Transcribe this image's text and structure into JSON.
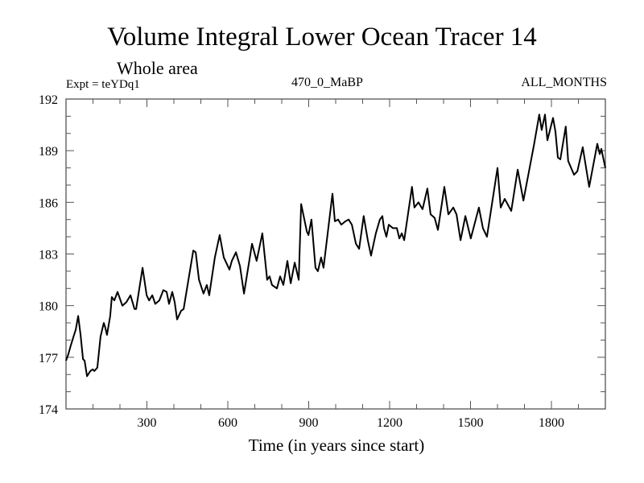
{
  "chart_data": {
    "type": "line",
    "title": "Volume Integral Lower Ocean Tracer 14",
    "subtitle": "Whole area",
    "annotations": {
      "left": "Expt = teYDq1",
      "center": "470_0_MaBP",
      "right": "ALL_MONTHS"
    },
    "xlabel": "Time (in years since start)",
    "ylabel": "",
    "xlim": [
      0,
      2000
    ],
    "ylim": [
      174,
      192
    ],
    "x_major_ticks": [
      300,
      600,
      900,
      1200,
      1500,
      1800
    ],
    "x_tick_labels": [
      "300",
      "600",
      "900",
      "1200",
      "1500",
      "1800"
    ],
    "x_minor_step": 100,
    "y_major_ticks": [
      174,
      177,
      180,
      183,
      186,
      189,
      192
    ],
    "y_tick_labels": [
      "174",
      "177",
      "180",
      "183",
      "186",
      "189",
      "192"
    ],
    "y_minor_step": 1,
    "grid": false,
    "legend": "none",
    "line_color": "#000000",
    "series": [
      {
        "name": "Lower Ocean Tracer 14",
        "points": [
          [
            0,
            176.8
          ],
          [
            9,
            177.2
          ],
          [
            18,
            177.7
          ],
          [
            30,
            178.3
          ],
          [
            36,
            178.6
          ],
          [
            45,
            179.4
          ],
          [
            54,
            178.3
          ],
          [
            63,
            176.9
          ],
          [
            69,
            176.8
          ],
          [
            78,
            175.9
          ],
          [
            90,
            176.2
          ],
          [
            99,
            176.3
          ],
          [
            105,
            176.2
          ],
          [
            116,
            176.4
          ],
          [
            128,
            178.2
          ],
          [
            140,
            179.0
          ],
          [
            146,
            178.7
          ],
          [
            152,
            178.3
          ],
          [
            164,
            179.4
          ],
          [
            170,
            180.5
          ],
          [
            179,
            180.3
          ],
          [
            191,
            180.8
          ],
          [
            209,
            180.0
          ],
          [
            224,
            180.2
          ],
          [
            239,
            180.6
          ],
          [
            254,
            179.8
          ],
          [
            260,
            179.8
          ],
          [
            284,
            182.2
          ],
          [
            299,
            180.6
          ],
          [
            308,
            180.3
          ],
          [
            320,
            180.6
          ],
          [
            331,
            180.1
          ],
          [
            346,
            180.3
          ],
          [
            361,
            180.9
          ],
          [
            373,
            180.8
          ],
          [
            382,
            180.1
          ],
          [
            394,
            180.8
          ],
          [
            403,
            180.2
          ],
          [
            412,
            179.2
          ],
          [
            427,
            179.7
          ],
          [
            436,
            179.8
          ],
          [
            472,
            183.2
          ],
          [
            481,
            183.1
          ],
          [
            493,
            181.5
          ],
          [
            510,
            180.7
          ],
          [
            522,
            181.2
          ],
          [
            531,
            180.6
          ],
          [
            552,
            182.8
          ],
          [
            570,
            184.1
          ],
          [
            585,
            182.8
          ],
          [
            606,
            182.1
          ],
          [
            615,
            182.6
          ],
          [
            630,
            183.1
          ],
          [
            645,
            182.3
          ],
          [
            660,
            180.7
          ],
          [
            690,
            183.6
          ],
          [
            707,
            182.6
          ],
          [
            728,
            184.2
          ],
          [
            746,
            181.5
          ],
          [
            755,
            181.7
          ],
          [
            764,
            181.2
          ],
          [
            782,
            181.0
          ],
          [
            794,
            181.7
          ],
          [
            806,
            181.2
          ],
          [
            821,
            182.6
          ],
          [
            833,
            181.3
          ],
          [
            848,
            182.5
          ],
          [
            863,
            181.5
          ],
          [
            872,
            185.9
          ],
          [
            893,
            184.3
          ],
          [
            899,
            184.1
          ],
          [
            910,
            185.0
          ],
          [
            925,
            182.2
          ],
          [
            934,
            182.0
          ],
          [
            946,
            182.8
          ],
          [
            955,
            182.2
          ],
          [
            988,
            186.5
          ],
          [
            997,
            184.9
          ],
          [
            1009,
            185.0
          ],
          [
            1021,
            184.7
          ],
          [
            1036,
            184.9
          ],
          [
            1048,
            185.0
          ],
          [
            1060,
            184.7
          ],
          [
            1075,
            183.6
          ],
          [
            1087,
            183.3
          ],
          [
            1104,
            185.2
          ],
          [
            1119,
            183.8
          ],
          [
            1131,
            182.9
          ],
          [
            1149,
            184.2
          ],
          [
            1164,
            185.0
          ],
          [
            1173,
            185.2
          ],
          [
            1179,
            184.5
          ],
          [
            1188,
            184.0
          ],
          [
            1197,
            184.7
          ],
          [
            1212,
            184.5
          ],
          [
            1227,
            184.5
          ],
          [
            1236,
            183.9
          ],
          [
            1245,
            184.2
          ],
          [
            1254,
            183.8
          ],
          [
            1283,
            186.9
          ],
          [
            1292,
            185.7
          ],
          [
            1307,
            186.0
          ],
          [
            1322,
            185.6
          ],
          [
            1340,
            186.8
          ],
          [
            1352,
            185.3
          ],
          [
            1367,
            185.1
          ],
          [
            1379,
            184.4
          ],
          [
            1403,
            186.9
          ],
          [
            1418,
            185.3
          ],
          [
            1436,
            185.7
          ],
          [
            1448,
            185.3
          ],
          [
            1463,
            183.8
          ],
          [
            1481,
            185.2
          ],
          [
            1501,
            183.9
          ],
          [
            1531,
            185.7
          ],
          [
            1546,
            184.5
          ],
          [
            1561,
            184.0
          ],
          [
            1600,
            188.0
          ],
          [
            1612,
            185.7
          ],
          [
            1627,
            186.2
          ],
          [
            1651,
            185.5
          ],
          [
            1675,
            187.9
          ],
          [
            1696,
            186.1
          ],
          [
            1735,
            189.3
          ],
          [
            1755,
            191.1
          ],
          [
            1764,
            190.2
          ],
          [
            1776,
            191.1
          ],
          [
            1785,
            189.6
          ],
          [
            1806,
            190.9
          ],
          [
            1815,
            190.1
          ],
          [
            1824,
            188.6
          ],
          [
            1833,
            188.5
          ],
          [
            1853,
            190.4
          ],
          [
            1862,
            188.4
          ],
          [
            1884,
            187.6
          ],
          [
            1896,
            187.8
          ],
          [
            1916,
            189.2
          ],
          [
            1940,
            186.9
          ],
          [
            1970,
            189.4
          ],
          [
            1979,
            188.8
          ],
          [
            1985,
            189.1
          ],
          [
            2000,
            188.0
          ]
        ]
      }
    ]
  }
}
